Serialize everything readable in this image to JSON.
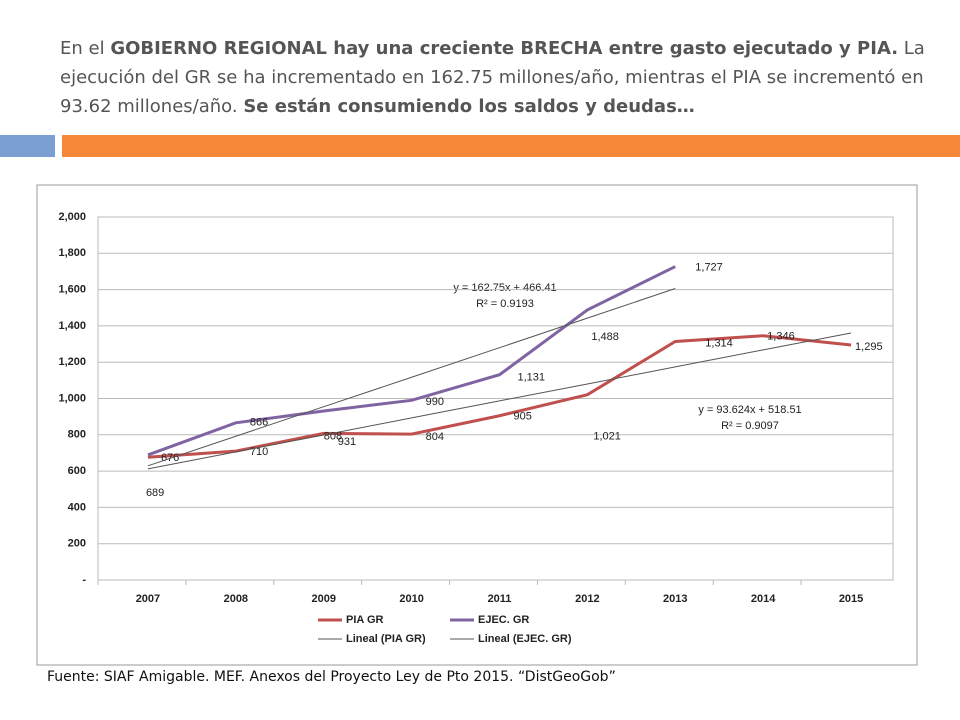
{
  "header": {
    "title": [
      {
        "text": "En el ",
        "bold": false
      },
      {
        "text": "GOBIERNO REGIONAL hay una creciente BRECHA entre gasto ejecutado y PIA.",
        "bold": true
      },
      {
        "text": " La ejecución del GR se ha incrementado en  162.75 millones/año, mientras el PIA se incrementó en  93.62 millones/año. ",
        "bold": false
      },
      {
        "text": "Se están consumiendo los saldos y deudas…",
        "bold": true
      }
    ]
  },
  "chart_data": {
    "type": "line",
    "categories": [
      "2007",
      "2008",
      "2009",
      "2010",
      "2011",
      "2012",
      "2013",
      "2014",
      "2015"
    ],
    "series": [
      {
        "name": "PIA GR",
        "color": "#c0504d",
        "values": [
          676,
          710,
          808,
          804,
          905,
          1021,
          1314,
          1346,
          1295
        ],
        "value_labels": [
          "676",
          "710",
          "808",
          "804",
          "905",
          "1,021",
          "1,314",
          "1,346",
          "1,295"
        ]
      },
      {
        "name": "EJEC. GR",
        "color": "#8064a2",
        "values": [
          689,
          866,
          931,
          990,
          1131,
          1488,
          1727,
          null,
          null
        ],
        "value_labels": [
          "689",
          "866",
          "931",
          "990",
          "1,131",
          "1,488",
          "1,727",
          null,
          null
        ]
      },
      {
        "name": "Lineal (PIA GR)",
        "color": "#555555",
        "values": [
          612,
          706,
          799,
          893,
          987,
          1080,
          1174,
          1268,
          1361
        ]
      },
      {
        "name": "Lineal (EJEC. GR)",
        "color": "#555555",
        "values": [
          629,
          792,
          955,
          1117,
          1280,
          1443,
          1606,
          null,
          null
        ]
      }
    ],
    "ylim": [
      0,
      2000
    ],
    "yticks": [
      {
        "value": 0,
        "label": "-"
      },
      {
        "value": 200,
        "label": "200"
      },
      {
        "value": 400,
        "label": "400"
      },
      {
        "value": 600,
        "label": "600"
      },
      {
        "value": 800,
        "label": "800"
      },
      {
        "value": 1000,
        "label": "1,000"
      },
      {
        "value": 1200,
        "label": "1,200"
      },
      {
        "value": 1400,
        "label": "1,400"
      },
      {
        "value": 1600,
        "label": "1,600"
      },
      {
        "value": 1800,
        "label": "1,800"
      },
      {
        "value": 2000,
        "label": "2,000"
      }
    ],
    "grid": true,
    "annotations": [
      "y = 162.75x + 466.41",
      "R² = 0.9193",
      "y = 93.624x + 518.51",
      "R² = 0.9097"
    ]
  },
  "footer": {
    "source": "Fuente: SIAF Amigable. MEF. Anexos del Proyecto Ley de Pto 2015. “DistGeoGob”"
  }
}
